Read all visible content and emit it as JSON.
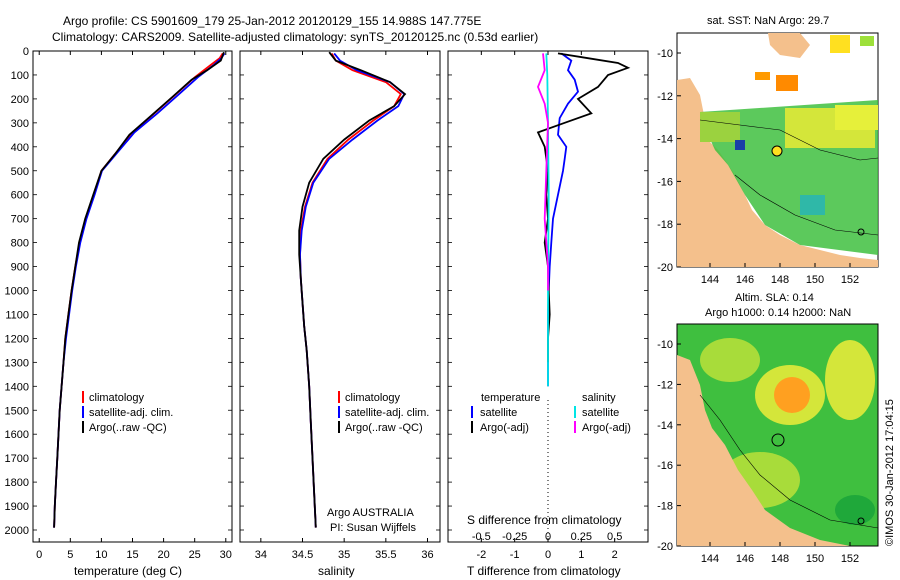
{
  "header": {
    "line1": "Argo profile: CS 5901609_179 25-Jan-2012 20120129_155 14.988S 147.775E",
    "line2": "Climatology: CARS2009. Satellite-adjusted climatology: synTS_20120125.nc (0.53d earlier)"
  },
  "colors": {
    "climatology": "#ff0000",
    "satellite": "#0000ff",
    "argo": "#000000",
    "sal_sat": "#00e5e5",
    "sal_argo": "#ff00ff",
    "land": "#f4c08c"
  },
  "y_axis": {
    "ticks": [
      0,
      100,
      200,
      300,
      400,
      500,
      600,
      700,
      800,
      900,
      1000,
      1100,
      1200,
      1300,
      1400,
      1500,
      1600,
      1700,
      1800,
      1900,
      2000
    ]
  },
  "panels": {
    "temperature": {
      "xlabel": "temperature (deg C)",
      "ticks": [
        "0",
        "5",
        "10",
        "15",
        "20",
        "25",
        "30"
      ],
      "legend": [
        "climatology",
        "satellite-adj. clim.",
        "Argo(..raw -QC)"
      ]
    },
    "salinity": {
      "xlabel": "salinity",
      "ticks": [
        "34",
        "34.5",
        "35",
        "35.5",
        "36"
      ],
      "legend": [
        "climatology",
        "satellite-adj. clim.",
        "Argo(..raw -QC)"
      ],
      "note1": "Argo AUSTRALIA",
      "note2": "PI: Susan Wijffels"
    },
    "difference": {
      "xlabel": "T difference from climatology",
      "top_label": "S difference from climatology",
      "t_ticks": [
        "-2",
        "-1",
        "0",
        "1",
        "2"
      ],
      "s_ticks": [
        "-0.5",
        "-0.25",
        "0",
        "0.25",
        "0.5"
      ],
      "legend_t_title": "temperature",
      "legend_s_title": "salinity",
      "legend_t": [
        "satellite",
        "Argo(-adj)"
      ],
      "legend_s": [
        "satellite",
        "Argo(-adj)"
      ]
    }
  },
  "maps": {
    "sst": {
      "title": "sat. SST: NaN Argo: 29.7"
    },
    "sla": {
      "title1": "Altim. SLA: 0.14",
      "title2": "Argo h1000: 0.14 h2000: NaN"
    },
    "xticks": [
      "144",
      "146",
      "148",
      "150",
      "152"
    ],
    "yticks": [
      "-10",
      "-12",
      "-14",
      "-16",
      "-18",
      "-20"
    ]
  },
  "footer_stamp": "©IMOS 30-Jan-2012 17:04:15",
  "chart_data": [
    {
      "type": "line",
      "xlabel": "temperature (deg C)",
      "ylabel": "",
      "xlim": [
        -1,
        31
      ],
      "ylim": [
        2050,
        0
      ],
      "series": [
        {
          "name": "climatology",
          "color": "#ff0000",
          "points": [
            [
              29.5,
              10
            ],
            [
              29,
              30
            ],
            [
              27.5,
              60
            ],
            [
              25,
              110
            ],
            [
              22,
              180
            ],
            [
              18.5,
              260
            ],
            [
              15,
              340
            ],
            [
              12.5,
              420
            ],
            [
              10,
              500
            ],
            [
              8.8,
              600
            ],
            [
              7.5,
              700
            ],
            [
              6.5,
              800
            ],
            [
              5.8,
              900
            ],
            [
              5.2,
              1000
            ],
            [
              4.7,
              1100
            ],
            [
              4.2,
              1200
            ],
            [
              3.9,
              1300
            ],
            [
              3.6,
              1400
            ],
            [
              3.3,
              1500
            ],
            [
              3.1,
              1600
            ],
            [
              2.9,
              1700
            ],
            [
              2.7,
              1800
            ],
            [
              2.5,
              1900
            ],
            [
              2.4,
              1990
            ]
          ]
        },
        {
          "name": "satellite-adj. clim.",
          "color": "#0000ff",
          "points": [
            [
              29.8,
              10
            ],
            [
              29.3,
              30
            ],
            [
              28,
              60
            ],
            [
              25.5,
              110
            ],
            [
              22.5,
              180
            ],
            [
              19,
              260
            ],
            [
              15.3,
              340
            ],
            [
              12.7,
              420
            ],
            [
              10.1,
              500
            ],
            [
              8.9,
              600
            ],
            [
              7.6,
              700
            ],
            [
              6.6,
              800
            ],
            [
              5.9,
              900
            ],
            [
              5.3,
              1000
            ],
            [
              4.8,
              1100
            ],
            [
              4.3,
              1200
            ],
            [
              3.9,
              1300
            ],
            [
              3.6,
              1400
            ],
            [
              3.3,
              1500
            ],
            [
              3.1,
              1600
            ],
            [
              2.9,
              1700
            ],
            [
              2.7,
              1800
            ],
            [
              2.5,
              1900
            ],
            [
              2.4,
              1990
            ]
          ]
        },
        {
          "name": "Argo(..raw -QC)",
          "color": "#000000",
          "points": [
            [
              29.7,
              5
            ],
            [
              29.2,
              40
            ],
            [
              27,
              80
            ],
            [
              24.5,
              120
            ],
            [
              21.5,
              190
            ],
            [
              18,
              270
            ],
            [
              14.5,
              350
            ],
            [
              12.2,
              430
            ],
            [
              10,
              500
            ],
            [
              8.7,
              600
            ],
            [
              7.4,
              700
            ],
            [
              6.4,
              800
            ],
            [
              5.8,
              900
            ],
            [
              5.2,
              1000
            ],
            [
              4.7,
              1100
            ],
            [
              4.2,
              1200
            ],
            [
              3.9,
              1300
            ],
            [
              3.6,
              1400
            ],
            [
              3.3,
              1500
            ],
            [
              3.1,
              1600
            ],
            [
              2.9,
              1700
            ],
            [
              2.7,
              1800
            ],
            [
              2.5,
              1900
            ],
            [
              2.4,
              1990
            ]
          ]
        }
      ]
    },
    {
      "type": "line",
      "xlabel": "salinity",
      "ylabel": "",
      "xlim": [
        33.75,
        36.15
      ],
      "ylim": [
        2050,
        0
      ],
      "series": [
        {
          "name": "climatology",
          "color": "#ff0000",
          "points": [
            [
              34.85,
              10
            ],
            [
              34.9,
              40
            ],
            [
              35.1,
              80
            ],
            [
              35.5,
              130
            ],
            [
              35.68,
              180
            ],
            [
              35.6,
              230
            ],
            [
              35.35,
              290
            ],
            [
              35.05,
              370
            ],
            [
              34.8,
              450
            ],
            [
              34.62,
              550
            ],
            [
              34.53,
              650
            ],
            [
              34.48,
              750
            ],
            [
              34.47,
              850
            ],
            [
              34.48,
              950
            ],
            [
              34.5,
              1050
            ],
            [
              34.52,
              1150
            ],
            [
              34.55,
              1250
            ],
            [
              34.58,
              1400
            ],
            [
              34.6,
              1550
            ],
            [
              34.62,
              1700
            ],
            [
              34.64,
              1850
            ],
            [
              34.66,
              1990
            ]
          ]
        },
        {
          "name": "satellite-adj. clim.",
          "color": "#0000ff",
          "points": [
            [
              34.88,
              10
            ],
            [
              34.95,
              40
            ],
            [
              35.15,
              80
            ],
            [
              35.55,
              130
            ],
            [
              35.72,
              180
            ],
            [
              35.65,
              230
            ],
            [
              35.4,
              290
            ],
            [
              35.1,
              370
            ],
            [
              34.82,
              450
            ],
            [
              34.63,
              550
            ],
            [
              34.54,
              650
            ],
            [
              34.49,
              750
            ],
            [
              34.47,
              850
            ],
            [
              34.48,
              950
            ],
            [
              34.5,
              1050
            ],
            [
              34.52,
              1150
            ],
            [
              34.55,
              1250
            ],
            [
              34.58,
              1400
            ],
            [
              34.6,
              1550
            ],
            [
              34.62,
              1700
            ],
            [
              34.64,
              1850
            ],
            [
              34.66,
              1990
            ]
          ]
        },
        {
          "name": "Argo(..raw -QC)",
          "color": "#000000",
          "points": [
            [
              34.82,
              5
            ],
            [
              34.9,
              40
            ],
            [
              35.2,
              80
            ],
            [
              35.55,
              130
            ],
            [
              35.73,
              180
            ],
            [
              35.6,
              230
            ],
            [
              35.3,
              290
            ],
            [
              35.0,
              370
            ],
            [
              34.75,
              450
            ],
            [
              34.58,
              550
            ],
            [
              34.5,
              650
            ],
            [
              34.46,
              750
            ],
            [
              34.46,
              850
            ],
            [
              34.48,
              950
            ],
            [
              34.5,
              1050
            ],
            [
              34.52,
              1150
            ],
            [
              34.55,
              1250
            ],
            [
              34.58,
              1400
            ],
            [
              34.6,
              1550
            ],
            [
              34.62,
              1700
            ],
            [
              34.64,
              1850
            ],
            [
              34.66,
              1990
            ]
          ]
        }
      ]
    },
    {
      "type": "line",
      "xlabel": "T difference from climatology",
      "ylabel": "",
      "xlim": [
        -3,
        3
      ],
      "ylim": [
        2050,
        0
      ],
      "series": [
        {
          "name": "satellite",
          "color": "#0000ff",
          "points": [
            [
              0.4,
              10
            ],
            [
              0.7,
              40
            ],
            [
              0.6,
              80
            ],
            [
              0.8,
              120
            ],
            [
              0.9,
              170
            ],
            [
              0.6,
              220
            ],
            [
              0.35,
              280
            ],
            [
              0.3,
              350
            ],
            [
              0.55,
              400
            ],
            [
              0.5,
              450
            ],
            [
              0.45,
              500
            ],
            [
              0.3,
              600
            ],
            [
              0.15,
              700
            ],
            [
              0.1,
              800
            ],
            [
              0.05,
              900
            ],
            [
              0.02,
              1000
            ],
            [
              0.0,
              1100
            ],
            [
              0.0,
              1200
            ],
            [
              0.0,
              1300
            ],
            [
              0.0,
              1400
            ]
          ]
        },
        {
          "name": "Argo(-adj)",
          "color": "#000000",
          "points": [
            [
              0.3,
              10
            ],
            [
              1.2,
              30
            ],
            [
              2.1,
              50
            ],
            [
              2.4,
              70
            ],
            [
              1.8,
              100
            ],
            [
              1.5,
              150
            ],
            [
              0.9,
              200
            ],
            [
              1.3,
              260
            ],
            [
              0.5,
              300
            ],
            [
              -0.3,
              340
            ],
            [
              -0.1,
              400
            ],
            [
              0.0,
              500
            ],
            [
              -0.05,
              600
            ],
            [
              0.0,
              700
            ],
            [
              -0.1,
              800
            ],
            [
              0.0,
              900
            ],
            [
              0.02,
              1000
            ],
            [
              0.05,
              1100
            ],
            [
              0.0,
              1200
            ],
            [
              0.0,
              1300
            ]
          ]
        },
        {
          "name": "satellite (salinity)",
          "color": "#00e5e5",
          "points": [
            [
              -0.05,
              10
            ],
            [
              -0.02,
              100
            ],
            [
              0.0,
              300
            ],
            [
              0.02,
              600
            ],
            [
              0.0,
              1000
            ],
            [
              0.0,
              1400
            ]
          ]
        },
        {
          "name": "Argo(-adj) (salinity)",
          "color": "#ff00ff",
          "points": [
            [
              -0.15,
              10
            ],
            [
              -0.1,
              80
            ],
            [
              -0.3,
              150
            ],
            [
              -0.1,
              220
            ],
            [
              0.0,
              300
            ],
            [
              -0.05,
              500
            ],
            [
              -0.1,
              700
            ],
            [
              0.0,
              900
            ],
            [
              0.0,
              1000
            ]
          ]
        }
      ]
    }
  ]
}
